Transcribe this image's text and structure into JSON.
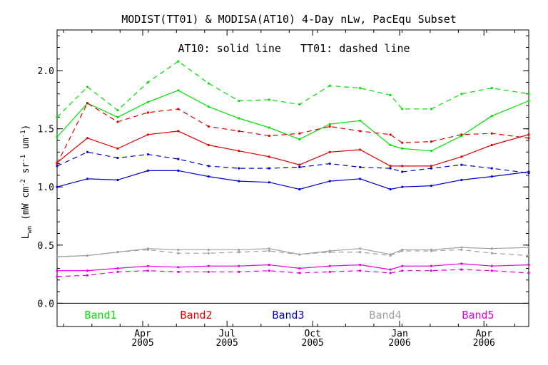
{
  "chart_data": {
    "type": "line",
    "title": "MODIST(TT01) & MODISA(AT10) 4-Day nLw, PacEqu Subset",
    "annotation": "AT10: solid line   TT01: dashed line",
    "ylabel_main": "L",
    "ylabel_sub": "wn",
    "ylabel_units": " (mW cm",
    "ylabel_units_exp1": "-2",
    "ylabel_units_mid": " sr",
    "ylabel_units_exp2": "-1",
    "ylabel_units_end": " um",
    "ylabel_units_exp3": "-1",
    "ylabel_units_close": ")",
    "ylim": [
      -0.2,
      2.35
    ],
    "yticks": [
      0.0,
      0.5,
      1.0,
      1.5,
      2.0
    ],
    "ytick_labels": [
      "0.0",
      "0.5",
      "1.0",
      "1.5",
      "2.0"
    ],
    "xlim": [
      0,
      17.9
    ],
    "xticks": [
      {
        "pos": 3.25,
        "month": "Apr",
        "year": "2005"
      },
      {
        "pos": 6.45,
        "month": "Jul",
        "year": "2005"
      },
      {
        "pos": 9.7,
        "month": "Oct",
        "year": "2005"
      },
      {
        "pos": 13.0,
        "month": "Jan",
        "year": "2006"
      },
      {
        "pos": 16.2,
        "month": "Apr",
        "year": "2006"
      }
    ],
    "x": [
      0,
      1.15,
      2.3,
      3.45,
      4.6,
      5.75,
      6.9,
      8.05,
      9.2,
      10.35,
      11.5,
      12.65,
      13.1,
      14.2,
      15.35,
      16.5,
      17.9
    ],
    "series": [
      {
        "name": "Band1",
        "style": "solid",
        "color": "#00e000",
        "values": [
          1.43,
          1.72,
          1.6,
          1.73,
          1.83,
          1.69,
          1.59,
          1.51,
          1.41,
          1.54,
          1.57,
          1.36,
          1.33,
          1.31,
          1.44,
          1.61,
          1.74
        ]
      },
      {
        "name": "Band1",
        "style": "dashed",
        "color": "#00e000",
        "values": [
          1.6,
          1.86,
          1.66,
          1.9,
          2.08,
          1.89,
          1.74,
          1.75,
          1.71,
          1.87,
          1.85,
          1.79,
          1.67,
          1.67,
          1.8,
          1.85,
          1.8
        ]
      },
      {
        "name": "Band2",
        "style": "solid",
        "color": "#e00000",
        "values": [
          1.21,
          1.42,
          1.33,
          1.45,
          1.48,
          1.36,
          1.31,
          1.26,
          1.19,
          1.3,
          1.32,
          1.18,
          1.18,
          1.18,
          1.26,
          1.36,
          1.45
        ]
      },
      {
        "name": "Band2",
        "style": "dashed",
        "color": "#e00000",
        "values": [
          1.2,
          1.72,
          1.56,
          1.64,
          1.67,
          1.52,
          1.48,
          1.44,
          1.46,
          1.52,
          1.48,
          1.45,
          1.38,
          1.39,
          1.45,
          1.46,
          1.42
        ]
      },
      {
        "name": "Band3",
        "style": "solid",
        "color": "#0000d0",
        "values": [
          1.0,
          1.07,
          1.06,
          1.14,
          1.14,
          1.09,
          1.05,
          1.04,
          0.98,
          1.05,
          1.07,
          0.98,
          1.0,
          1.01,
          1.06,
          1.09,
          1.13
        ]
      },
      {
        "name": "Band3",
        "style": "dashed",
        "color": "#0000d0",
        "values": [
          1.18,
          1.3,
          1.25,
          1.28,
          1.24,
          1.18,
          1.16,
          1.16,
          1.17,
          1.2,
          1.17,
          1.16,
          1.13,
          1.16,
          1.19,
          1.16,
          1.12
        ]
      },
      {
        "name": "Band4",
        "style": "solid",
        "color": "#a0a0a0",
        "values": [
          0.4,
          0.41,
          0.44,
          0.47,
          0.46,
          0.46,
          0.46,
          0.47,
          0.42,
          0.45,
          0.47,
          0.42,
          0.46,
          0.46,
          0.48,
          0.47,
          0.48
        ]
      },
      {
        "name": "Band4",
        "style": "dashed",
        "color": "#a0a0a0",
        "values": [
          0.4,
          0.41,
          0.44,
          0.46,
          0.43,
          0.43,
          0.44,
          0.45,
          0.42,
          0.44,
          0.44,
          0.41,
          0.45,
          0.45,
          0.46,
          0.43,
          0.41
        ]
      },
      {
        "name": "Band5",
        "style": "solid",
        "color": "#e000e0",
        "values": [
          0.28,
          0.28,
          0.3,
          0.32,
          0.31,
          0.32,
          0.32,
          0.33,
          0.3,
          0.32,
          0.33,
          0.29,
          0.32,
          0.32,
          0.34,
          0.32,
          0.33
        ]
      },
      {
        "name": "Band5",
        "style": "dashed",
        "color": "#e000e0",
        "values": [
          0.23,
          0.24,
          0.27,
          0.28,
          0.27,
          0.27,
          0.27,
          0.28,
          0.26,
          0.27,
          0.28,
          0.26,
          0.28,
          0.28,
          0.29,
          0.28,
          0.26
        ]
      }
    ],
    "legend": [
      {
        "label": "Band1",
        "color": "#00e000"
      },
      {
        "label": "Band2",
        "color": "#e00000"
      },
      {
        "label": "Band3",
        "color": "#0000d0"
      },
      {
        "label": "Band4",
        "color": "#a0a0a0"
      },
      {
        "label": "Band5",
        "color": "#e000e0"
      }
    ],
    "grid": false,
    "legend_placement": "bottom-inside"
  }
}
